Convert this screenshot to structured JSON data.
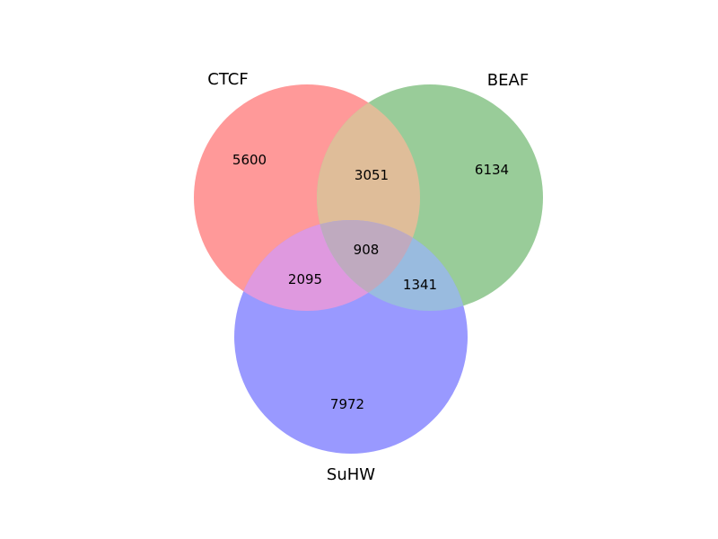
{
  "sets": [
    {
      "key": "ctcf",
      "label": "CTCF",
      "color": "#ff9999"
    },
    {
      "key": "beaf",
      "label": "BEAF",
      "color": "#99cc99"
    },
    {
      "key": "suhw",
      "label": "SuHW",
      "color": "#9999ff"
    }
  ],
  "regions": {
    "ctcf_only": "5600",
    "beaf_only": "6134",
    "suhw_only": "7972",
    "ctcf_beaf": "3051",
    "ctcf_suhw": "2095",
    "beaf_suhw": "1341",
    "all_three": "908"
  },
  "colors": {
    "ctcf_beaf": "#dfbd99",
    "ctcf_suhw": "#df99df",
    "beaf_suhw": "#99bbdf",
    "all_three": "#bfaabf"
  }
}
